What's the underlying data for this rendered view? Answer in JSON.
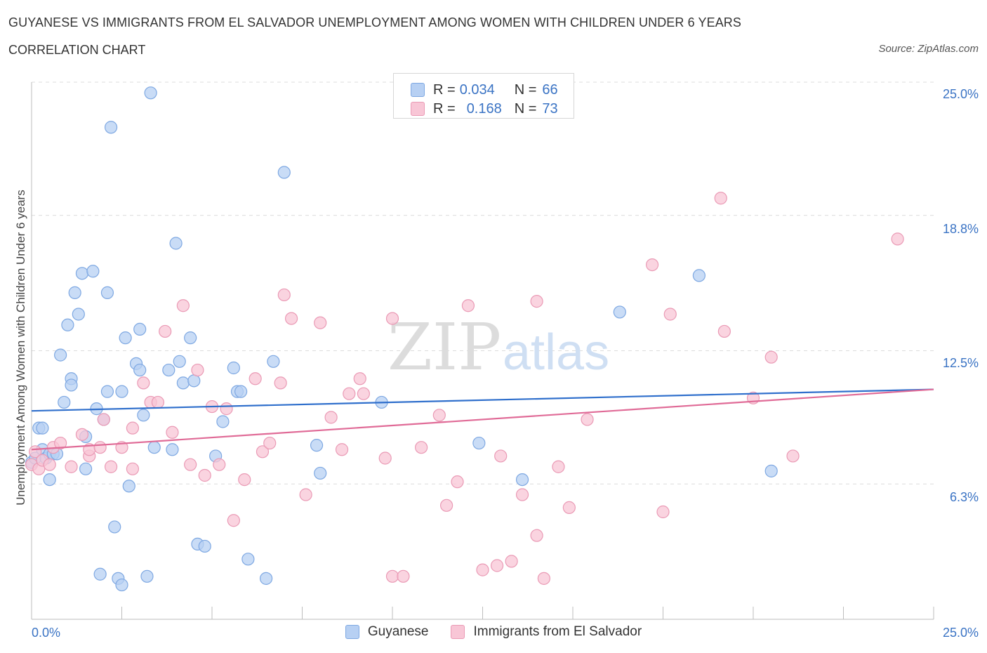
{
  "header": {
    "title": "GUYANESE VS IMMIGRANTS FROM EL SALVADOR UNEMPLOYMENT AMONG WOMEN WITH CHILDREN UNDER 6 YEARS",
    "subtitle": "CORRELATION CHART",
    "source": "Source: ZipAtlas.com"
  },
  "watermark": {
    "zip": "ZIP",
    "atlas": "atlas"
  },
  "legend_top": {
    "rows": [
      {
        "r_label": "R =",
        "r_value": "0.034",
        "n_label": "N =",
        "n_value": "66"
      },
      {
        "r_label": "R =",
        "r_value": "0.168",
        "n_label": "N =",
        "n_value": "73"
      }
    ]
  },
  "colors": {
    "blue_fill": "#b7d0f3",
    "blue_stroke": "#7ea8e2",
    "blue_line": "#2f6fcc",
    "pink_fill": "#f8c6d6",
    "pink_stroke": "#ea9ab5",
    "pink_line": "#e06b97",
    "tick_text": "#3a73c4",
    "grid": "#dcdcdc"
  },
  "chart_data": {
    "type": "scatter",
    "title": "GUYANESE VS IMMIGRANTS FROM EL SALVADOR UNEMPLOYMENT AMONG WOMEN WITH CHILDREN UNDER 6 YEARS",
    "ylabel": "Unemployment Among Women with Children Under 6 years",
    "xlabel": "",
    "xlim": [
      0,
      25
    ],
    "ylim": [
      0,
      25
    ],
    "x_tick_labels": [
      "0.0%",
      "25.0%"
    ],
    "y_ticks": [
      6.3,
      12.5,
      18.8,
      25.0
    ],
    "y_tick_labels": [
      "6.3%",
      "12.5%",
      "18.8%",
      "25.0%"
    ],
    "grid": true,
    "legend_placement": "top-center",
    "series": [
      {
        "name": "Guyanese",
        "r": 0.034,
        "n": 66,
        "trend": {
          "x": [
            0,
            25
          ],
          "y": [
            9.7,
            10.7
          ]
        },
        "points": [
          [
            0.0,
            7.3
          ],
          [
            0.1,
            7.5
          ],
          [
            0.2,
            8.9
          ],
          [
            0.3,
            8.9
          ],
          [
            0.3,
            7.9
          ],
          [
            0.4,
            7.5
          ],
          [
            0.5,
            6.5
          ],
          [
            0.5,
            7.7
          ],
          [
            0.6,
            7.7
          ],
          [
            0.7,
            7.7
          ],
          [
            0.8,
            12.3
          ],
          [
            0.9,
            10.1
          ],
          [
            1.0,
            13.7
          ],
          [
            1.1,
            11.2
          ],
          [
            1.1,
            10.9
          ],
          [
            1.2,
            15.2
          ],
          [
            1.3,
            14.2
          ],
          [
            1.4,
            16.1
          ],
          [
            1.5,
            7.0
          ],
          [
            1.5,
            8.5
          ],
          [
            1.7,
            16.2
          ],
          [
            1.8,
            9.8
          ],
          [
            1.9,
            2.1
          ],
          [
            2.0,
            9.3
          ],
          [
            2.1,
            10.6
          ],
          [
            2.1,
            15.2
          ],
          [
            2.2,
            22.9
          ],
          [
            2.3,
            4.3
          ],
          [
            2.4,
            1.9
          ],
          [
            2.5,
            10.6
          ],
          [
            2.5,
            1.6
          ],
          [
            2.6,
            13.1
          ],
          [
            2.7,
            6.2
          ],
          [
            2.9,
            11.9
          ],
          [
            3.0,
            11.6
          ],
          [
            3.0,
            13.5
          ],
          [
            3.1,
            9.5
          ],
          [
            3.2,
            2.0
          ],
          [
            3.3,
            24.5
          ],
          [
            3.4,
            8.0
          ],
          [
            3.8,
            11.6
          ],
          [
            3.9,
            7.9
          ],
          [
            4.0,
            17.5
          ],
          [
            4.1,
            12.0
          ],
          [
            4.2,
            11.0
          ],
          [
            4.4,
            13.1
          ],
          [
            4.5,
            11.1
          ],
          [
            4.6,
            3.5
          ],
          [
            4.8,
            3.4
          ],
          [
            5.1,
            7.6
          ],
          [
            5.3,
            9.2
          ],
          [
            5.6,
            11.7
          ],
          [
            5.7,
            10.6
          ],
          [
            5.8,
            10.6
          ],
          [
            6.0,
            2.8
          ],
          [
            6.5,
            1.9
          ],
          [
            6.7,
            12.0
          ],
          [
            7.0,
            20.8
          ],
          [
            7.9,
            8.1
          ],
          [
            8.0,
            6.8
          ],
          [
            9.7,
            10.1
          ],
          [
            12.4,
            8.2
          ],
          [
            13.6,
            6.5
          ],
          [
            16.3,
            14.3
          ],
          [
            18.5,
            16.0
          ],
          [
            20.5,
            6.9
          ]
        ]
      },
      {
        "name": "Immigrants from El Salvador",
        "r": 0.168,
        "n": 73,
        "trend": {
          "x": [
            0,
            25
          ],
          "y": [
            7.9,
            10.7
          ]
        },
        "points": [
          [
            0.0,
            7.2
          ],
          [
            0.1,
            7.8
          ],
          [
            0.2,
            7.0
          ],
          [
            0.3,
            7.4
          ],
          [
            0.5,
            7.2
          ],
          [
            0.6,
            8.0
          ],
          [
            0.8,
            8.2
          ],
          [
            1.1,
            7.1
          ],
          [
            1.4,
            8.6
          ],
          [
            1.6,
            7.6
          ],
          [
            1.6,
            7.9
          ],
          [
            1.9,
            8.0
          ],
          [
            2.0,
            9.3
          ],
          [
            2.2,
            7.1
          ],
          [
            2.5,
            8.0
          ],
          [
            2.8,
            7.0
          ],
          [
            2.8,
            8.9
          ],
          [
            3.1,
            11.0
          ],
          [
            3.3,
            10.1
          ],
          [
            3.5,
            10.1
          ],
          [
            3.7,
            13.4
          ],
          [
            3.9,
            8.7
          ],
          [
            4.2,
            14.6
          ],
          [
            4.4,
            7.2
          ],
          [
            4.6,
            11.6
          ],
          [
            4.8,
            6.7
          ],
          [
            5.0,
            9.9
          ],
          [
            5.2,
            7.2
          ],
          [
            5.4,
            9.8
          ],
          [
            5.6,
            4.6
          ],
          [
            5.9,
            6.5
          ],
          [
            6.2,
            11.2
          ],
          [
            6.4,
            7.8
          ],
          [
            6.6,
            8.2
          ],
          [
            6.9,
            11.0
          ],
          [
            7.0,
            15.1
          ],
          [
            7.2,
            14.0
          ],
          [
            7.6,
            5.8
          ],
          [
            8.0,
            13.8
          ],
          [
            8.3,
            9.4
          ],
          [
            8.6,
            7.9
          ],
          [
            8.8,
            10.5
          ],
          [
            9.1,
            11.2
          ],
          [
            9.2,
            10.5
          ],
          [
            9.8,
            7.5
          ],
          [
            10.0,
            2.0
          ],
          [
            10.0,
            14.0
          ],
          [
            10.3,
            2.0
          ],
          [
            10.8,
            8.0
          ],
          [
            11.3,
            9.5
          ],
          [
            11.5,
            5.3
          ],
          [
            11.8,
            6.4
          ],
          [
            12.1,
            14.6
          ],
          [
            12.5,
            2.3
          ],
          [
            12.9,
            2.5
          ],
          [
            13.0,
            7.6
          ],
          [
            13.3,
            2.7
          ],
          [
            13.6,
            5.8
          ],
          [
            14.0,
            3.9
          ],
          [
            14.0,
            14.8
          ],
          [
            14.2,
            1.9
          ],
          [
            14.6,
            7.1
          ],
          [
            14.9,
            5.2
          ],
          [
            15.4,
            9.3
          ],
          [
            17.2,
            16.5
          ],
          [
            17.5,
            5.0
          ],
          [
            17.7,
            14.2
          ],
          [
            19.1,
            19.6
          ],
          [
            19.2,
            13.4
          ],
          [
            20.0,
            10.3
          ],
          [
            20.5,
            12.2
          ],
          [
            21.1,
            7.6
          ],
          [
            24.0,
            17.7
          ]
        ]
      }
    ]
  },
  "legend_bottom": {
    "items": [
      {
        "label": "Guyanese"
      },
      {
        "label": "Immigrants from El Salvador"
      }
    ]
  }
}
